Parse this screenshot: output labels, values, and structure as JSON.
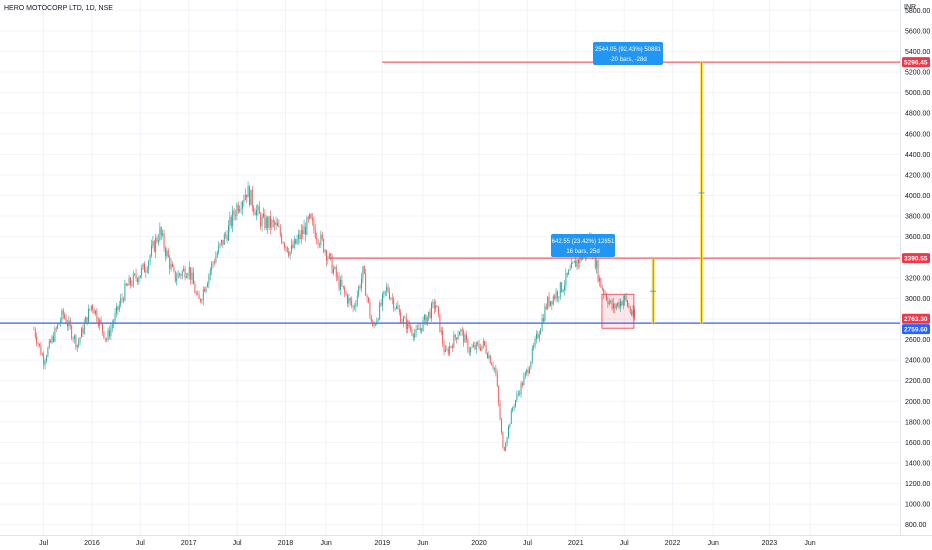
{
  "header": {
    "symbol": "HERO MOTOCORP LTD, 1D, NSE"
  },
  "currency_label": "INR",
  "colors": {
    "up": "#26a69a",
    "down": "#ef5350",
    "blue_line": "#2962ff",
    "red_line": "#f23645",
    "projection": "#fdd835",
    "annotation_bg": "#2196f3",
    "grid": "#f0f3fa"
  },
  "annotations": [
    {
      "line1": "2544.05 (92.43%) 50881",
      "line2": "-20 bars, -28d"
    },
    {
      "line1": "642.55 (23.42%) 12851",
      "line2": "16 bars, 25d"
    }
  ],
  "price_tags": [
    {
      "label": "5296.45",
      "value": 5296.45,
      "color": "#f23645"
    },
    {
      "label": "3390.55",
      "value": 3390.55,
      "color": "#f23645"
    },
    {
      "label": "2763.30",
      "value": 2763.3,
      "color": "#f23645"
    },
    {
      "label": "2759.60",
      "value": 2759.6,
      "color": "#2962ff"
    }
  ],
  "chart_data": {
    "type": "candlestick",
    "y_ticks": [
      "800.00",
      "1000.00",
      "1200.00",
      "1400.00",
      "1600.00",
      "1800.00",
      "2000.00",
      "2200.00",
      "2400.00",
      "2600.00",
      "2800.00",
      "3000.00",
      "3200.00",
      "3400.00",
      "3600.00",
      "3800.00",
      "4000.00",
      "4200.00",
      "4400.00",
      "4600.00",
      "4800.00",
      "5000.00",
      "5200.00",
      "5400.00",
      "5600.00",
      "5800.00"
    ],
    "x_ticks": [
      "Jul",
      "2016",
      "Jul",
      "2017",
      "Jul",
      "2018",
      "Jun",
      "2019",
      "Jun",
      "2020",
      "Jul",
      "2021",
      "Jul",
      "2022",
      "Jun",
      "2023",
      "Jun"
    ],
    "ylim": [
      700,
      5900
    ],
    "price_path": [
      [
        2015.4,
        2700
      ],
      [
        2015.5,
        2400
      ],
      [
        2015.7,
        2850
      ],
      [
        2015.85,
        2550
      ],
      [
        2016.0,
        2950
      ],
      [
        2016.15,
        2600
      ],
      [
        2016.35,
        3100
      ],
      [
        2016.55,
        3300
      ],
      [
        2016.7,
        3650
      ],
      [
        2016.85,
        3200
      ],
      [
        2017.0,
        3300
      ],
      [
        2017.1,
        2950
      ],
      [
        2017.25,
        3350
      ],
      [
        2017.4,
        3650
      ],
      [
        2017.5,
        3900
      ],
      [
        2017.6,
        4050
      ],
      [
        2017.75,
        3750
      ],
      [
        2017.9,
        3700
      ],
      [
        2018.05,
        3450
      ],
      [
        2018.25,
        3750
      ],
      [
        2018.4,
        3500
      ],
      [
        2018.55,
        3150
      ],
      [
        2018.7,
        2900
      ],
      [
        2018.8,
        3250
      ],
      [
        2018.9,
        2700
      ],
      [
        2019.05,
        3100
      ],
      [
        2019.2,
        2800
      ],
      [
        2019.35,
        2650
      ],
      [
        2019.55,
        2950
      ],
      [
        2019.65,
        2450
      ],
      [
        2019.8,
        2700
      ],
      [
        2019.9,
        2500
      ],
      [
        2020.05,
        2550
      ],
      [
        2020.17,
        2300
      ],
      [
        2020.25,
        1500
      ],
      [
        2020.35,
        1950
      ],
      [
        2020.5,
        2300
      ],
      [
        2020.7,
        2950
      ],
      [
        2020.85,
        3100
      ],
      [
        2021.0,
        3350
      ],
      [
        2021.1,
        3450
      ],
      [
        2021.15,
        3600
      ],
      [
        2021.25,
        3150
      ],
      [
        2021.38,
        2900
      ],
      [
        2021.5,
        3000
      ],
      [
        2021.58,
        2850
      ],
      [
        2021.62,
        2760
      ]
    ],
    "horizontal_levels": [
      5296.45,
      3390.55,
      2763.3,
      2759.6
    ],
    "range_boxes": [
      {
        "from": 2021.27,
        "to": 2021.6,
        "low": 2710,
        "high": 3040
      }
    ],
    "measurements": [
      {
        "x": 2021.8,
        "from": 2748,
        "to": 3390.55
      },
      {
        "x": 2022.3,
        "from": 2752,
        "to": 5296.45
      }
    ],
    "xlim": [
      2015.05,
      2024.35
    ]
  }
}
